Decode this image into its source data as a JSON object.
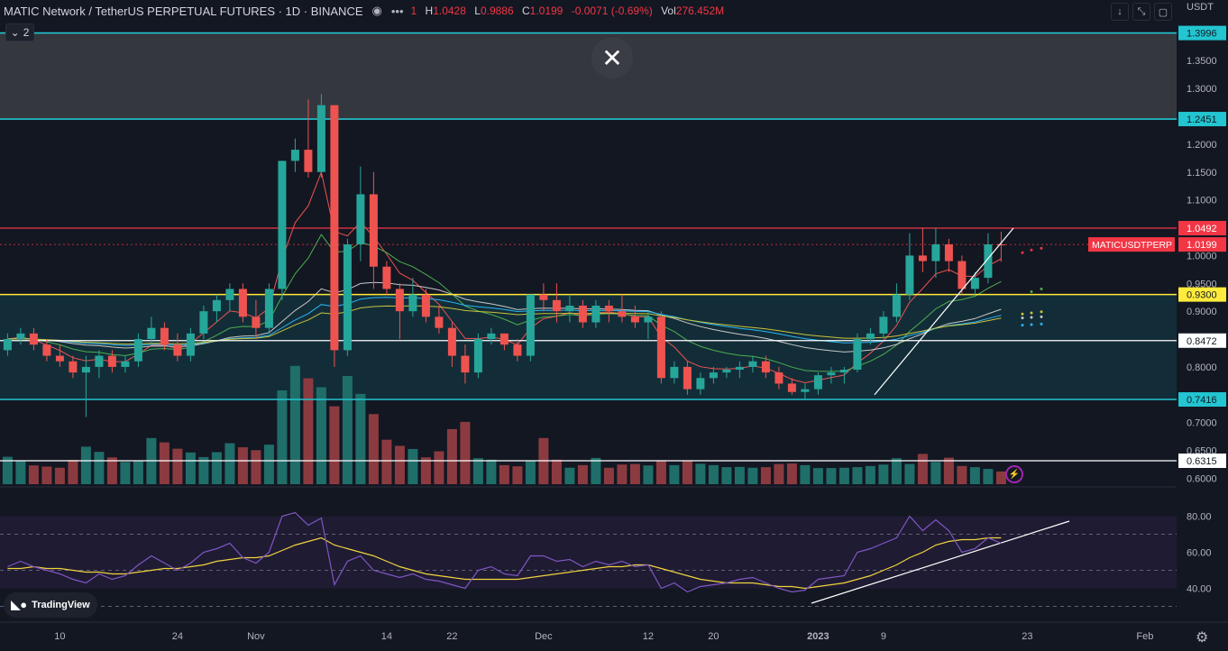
{
  "header": {
    "title": "MATIC Network / TetherUS PERPETUAL FUTURES · 1D · BINANCE",
    "ohlc_prefix": "1",
    "high_label": "H",
    "high": "1.0428",
    "low_label": "L",
    "low": "0.9886",
    "close_label": "C",
    "close": "1.0199",
    "change": "-0.0071 (-0.69%)",
    "vol_label": "Vol",
    "volume": "276.452M",
    "indicators_count": "2",
    "currency": "USDT"
  },
  "branding": {
    "logo_text": "TradingView"
  },
  "colors": {
    "up": "#26a69a",
    "down": "#ef5350",
    "resistance_red": "#f23645",
    "support_yellow": "#ffeb3b",
    "cyan": "#22c5d0",
    "white": "#ffffff",
    "rsi_line": "#7e57c2",
    "rsi_ma": "#f0d33e"
  },
  "chart_data": {
    "type": "candlestick",
    "symbol_label": "MATICUSDTPERP",
    "last_price": "1.0199",
    "y_ticks": [
      "1.3500",
      "1.3000",
      "1.2000",
      "1.1500",
      "1.1000",
      "1.0000",
      "0.9500",
      "0.9000",
      "0.8000",
      "0.7000",
      "0.6500",
      "0.6000"
    ],
    "x_ticks": [
      "10",
      "24",
      "Nov",
      "14",
      "22",
      "Dec",
      "12",
      "20",
      "2023",
      "9",
      "23",
      "Feb"
    ],
    "x_tick_index": [
      4,
      13,
      19,
      29,
      34,
      41,
      49,
      54,
      62,
      67,
      78,
      87
    ],
    "levels": [
      {
        "price": 1.3996,
        "label": "1.3996",
        "color": "#22c5d0"
      },
      {
        "price": 1.2451,
        "label": "1.2451",
        "color": "#22c5d0"
      },
      {
        "price": 1.0492,
        "label": "1.0492",
        "color": "#f23645"
      },
      {
        "price": 0.93,
        "label": "0.9300",
        "color": "#ffeb3b"
      },
      {
        "price": 0.8472,
        "label": "0.8472",
        "color": "#ffffff"
      },
      {
        "price": 0.7416,
        "label": "0.7416",
        "color": "#22c5d0"
      },
      {
        "price": 0.6315,
        "label": "0.6315",
        "color": "#ffffff"
      }
    ],
    "candles": [
      [
        0.83,
        0.86,
        0.82,
        0.85
      ],
      [
        0.85,
        0.87,
        0.84,
        0.86
      ],
      [
        0.86,
        0.87,
        0.83,
        0.84
      ],
      [
        0.84,
        0.85,
        0.81,
        0.82
      ],
      [
        0.82,
        0.84,
        0.8,
        0.81
      ],
      [
        0.81,
        0.82,
        0.78,
        0.79
      ],
      [
        0.79,
        0.82,
        0.71,
        0.8
      ],
      [
        0.8,
        0.83,
        0.78,
        0.82
      ],
      [
        0.82,
        0.83,
        0.79,
        0.8
      ],
      [
        0.8,
        0.82,
        0.79,
        0.81
      ],
      [
        0.81,
        0.86,
        0.8,
        0.85
      ],
      [
        0.85,
        0.89,
        0.84,
        0.87
      ],
      [
        0.87,
        0.88,
        0.83,
        0.84
      ],
      [
        0.84,
        0.86,
        0.81,
        0.82
      ],
      [
        0.82,
        0.87,
        0.81,
        0.86
      ],
      [
        0.86,
        0.91,
        0.85,
        0.9
      ],
      [
        0.9,
        0.93,
        0.88,
        0.92
      ],
      [
        0.92,
        0.95,
        0.9,
        0.94
      ],
      [
        0.94,
        0.95,
        0.88,
        0.89
      ],
      [
        0.89,
        0.92,
        0.85,
        0.87
      ],
      [
        0.87,
        0.95,
        0.86,
        0.94
      ],
      [
        0.94,
        1.17,
        0.92,
        1.17
      ],
      [
        1.17,
        1.21,
        1.15,
        1.19
      ],
      [
        1.19,
        1.28,
        1.14,
        1.15
      ],
      [
        1.15,
        1.29,
        1.14,
        1.27
      ],
      [
        1.27,
        1.27,
        0.8,
        0.83
      ],
      [
        0.83,
        1.03,
        0.82,
        1.02
      ],
      [
        1.02,
        1.16,
        0.99,
        1.11
      ],
      [
        1.11,
        1.15,
        0.94,
        0.98
      ],
      [
        0.98,
        0.99,
        0.93,
        0.94
      ],
      [
        0.94,
        0.95,
        0.85,
        0.9
      ],
      [
        0.9,
        0.96,
        0.89,
        0.93
      ],
      [
        0.93,
        0.94,
        0.88,
        0.89
      ],
      [
        0.89,
        0.91,
        0.86,
        0.87
      ],
      [
        0.87,
        0.88,
        0.8,
        0.82
      ],
      [
        0.82,
        0.84,
        0.77,
        0.79
      ],
      [
        0.79,
        0.86,
        0.78,
        0.85
      ],
      [
        0.85,
        0.87,
        0.84,
        0.86
      ],
      [
        0.86,
        0.86,
        0.83,
        0.84
      ],
      [
        0.84,
        0.85,
        0.81,
        0.82
      ],
      [
        0.82,
        0.93,
        0.81,
        0.93
      ],
      [
        0.93,
        0.95,
        0.9,
        0.92
      ],
      [
        0.92,
        0.95,
        0.88,
        0.9
      ],
      [
        0.9,
        0.93,
        0.88,
        0.91
      ],
      [
        0.91,
        0.92,
        0.87,
        0.88
      ],
      [
        0.88,
        0.92,
        0.87,
        0.91
      ],
      [
        0.91,
        0.92,
        0.88,
        0.9
      ],
      [
        0.9,
        0.93,
        0.88,
        0.89
      ],
      [
        0.89,
        0.91,
        0.87,
        0.88
      ],
      [
        0.88,
        0.9,
        0.85,
        0.89
      ],
      [
        0.89,
        0.9,
        0.77,
        0.78
      ],
      [
        0.78,
        0.81,
        0.77,
        0.8
      ],
      [
        0.8,
        0.81,
        0.75,
        0.76
      ],
      [
        0.76,
        0.79,
        0.75,
        0.78
      ],
      [
        0.78,
        0.8,
        0.77,
        0.79
      ],
      [
        0.79,
        0.8,
        0.78,
        0.795
      ],
      [
        0.795,
        0.81,
        0.78,
        0.8
      ],
      [
        0.8,
        0.82,
        0.79,
        0.81
      ],
      [
        0.81,
        0.82,
        0.78,
        0.79
      ],
      [
        0.79,
        0.8,
        0.76,
        0.77
      ],
      [
        0.77,
        0.78,
        0.75,
        0.755
      ],
      [
        0.755,
        0.77,
        0.74,
        0.76
      ],
      [
        0.76,
        0.79,
        0.75,
        0.785
      ],
      [
        0.785,
        0.8,
        0.77,
        0.79
      ],
      [
        0.79,
        0.8,
        0.77,
        0.795
      ],
      [
        0.795,
        0.86,
        0.79,
        0.85
      ],
      [
        0.85,
        0.87,
        0.84,
        0.86
      ],
      [
        0.86,
        0.9,
        0.85,
        0.89
      ],
      [
        0.89,
        0.95,
        0.88,
        0.93
      ],
      [
        0.93,
        1.04,
        0.92,
        1.0
      ],
      [
        1.0,
        1.05,
        0.97,
        0.99
      ],
      [
        0.99,
        1.05,
        0.96,
        1.02
      ],
      [
        1.02,
        1.03,
        0.97,
        0.99
      ],
      [
        0.99,
        1.0,
        0.93,
        0.94
      ],
      [
        0.94,
        0.97,
        0.93,
        0.96
      ],
      [
        0.96,
        1.04,
        0.95,
        1.02
      ],
      [
        1.02,
        1.0428,
        0.9886,
        1.0199
      ]
    ],
    "volumes": [
      9.5,
      8.1,
      6.5,
      6.1,
      5.7,
      8.4,
      13,
      11.2,
      9.3,
      7.7,
      8.2,
      16,
      14.5,
      12.3,
      11,
      9.4,
      11.1,
      14.2,
      12.8,
      11.8,
      13.7,
      32.5,
      41,
      36.7,
      33.6,
      27,
      37.5,
      31.3,
      24.3,
      15.4,
      13.3,
      12.2,
      9.3,
      11.4,
      19.1,
      21.6,
      9,
      8.5,
      6.6,
      6.2,
      8.1,
      16,
      8.5,
      5.7,
      6.6,
      9.1,
      5.7,
      6.8,
      7,
      6.5,
      8.2,
      6.6,
      8.1,
      7.1,
      6.6,
      5.9,
      6,
      5.7,
      5.9,
      7,
      7.2,
      6.6,
      5.6,
      5.6,
      5.7,
      5.9,
      6.3,
      6.8,
      9,
      7,
      10.5,
      7.7,
      9.2,
      6.3,
      5.9,
      5.3,
      4.4
    ],
    "rsi_y_ticks": [
      "80.00",
      "60.00",
      "40.00"
    ],
    "rsi": [
      52,
      55,
      52,
      50,
      48,
      45,
      43,
      48,
      45,
      47,
      53,
      58,
      54,
      50,
      54,
      60,
      62,
      65,
      57,
      54,
      60,
      80,
      82,
      75,
      79,
      42,
      55,
      58,
      50,
      48,
      46,
      48,
      45,
      44,
      42,
      40,
      50,
      52,
      48,
      47,
      58,
      58,
      55,
      56,
      52,
      55,
      53,
      55,
      52,
      53,
      40,
      43,
      38,
      41,
      42,
      43,
      45,
      46,
      43,
      40,
      38,
      39,
      45,
      46,
      47,
      60,
      62,
      65,
      68,
      80,
      72,
      78,
      72,
      60,
      62,
      68,
      65
    ],
    "rsi_ma": [
      51,
      51,
      52,
      51,
      51,
      50,
      49,
      49,
      48,
      48,
      49,
      50,
      51,
      51,
      52,
      53,
      55,
      56,
      57,
      57,
      58,
      61,
      64,
      66,
      68,
      64,
      62,
      60,
      58,
      55,
      52,
      50,
      48,
      47,
      46,
      45,
      45,
      45,
      45,
      45,
      46,
      47,
      48,
      49,
      50,
      51,
      52,
      52,
      53,
      53,
      51,
      49,
      47,
      45,
      44,
      43,
      43,
      43,
      42,
      41,
      41,
      40,
      41,
      42,
      43,
      45,
      47,
      50,
      53,
      57,
      60,
      64,
      66,
      67,
      67,
      68,
      68
    ]
  }
}
